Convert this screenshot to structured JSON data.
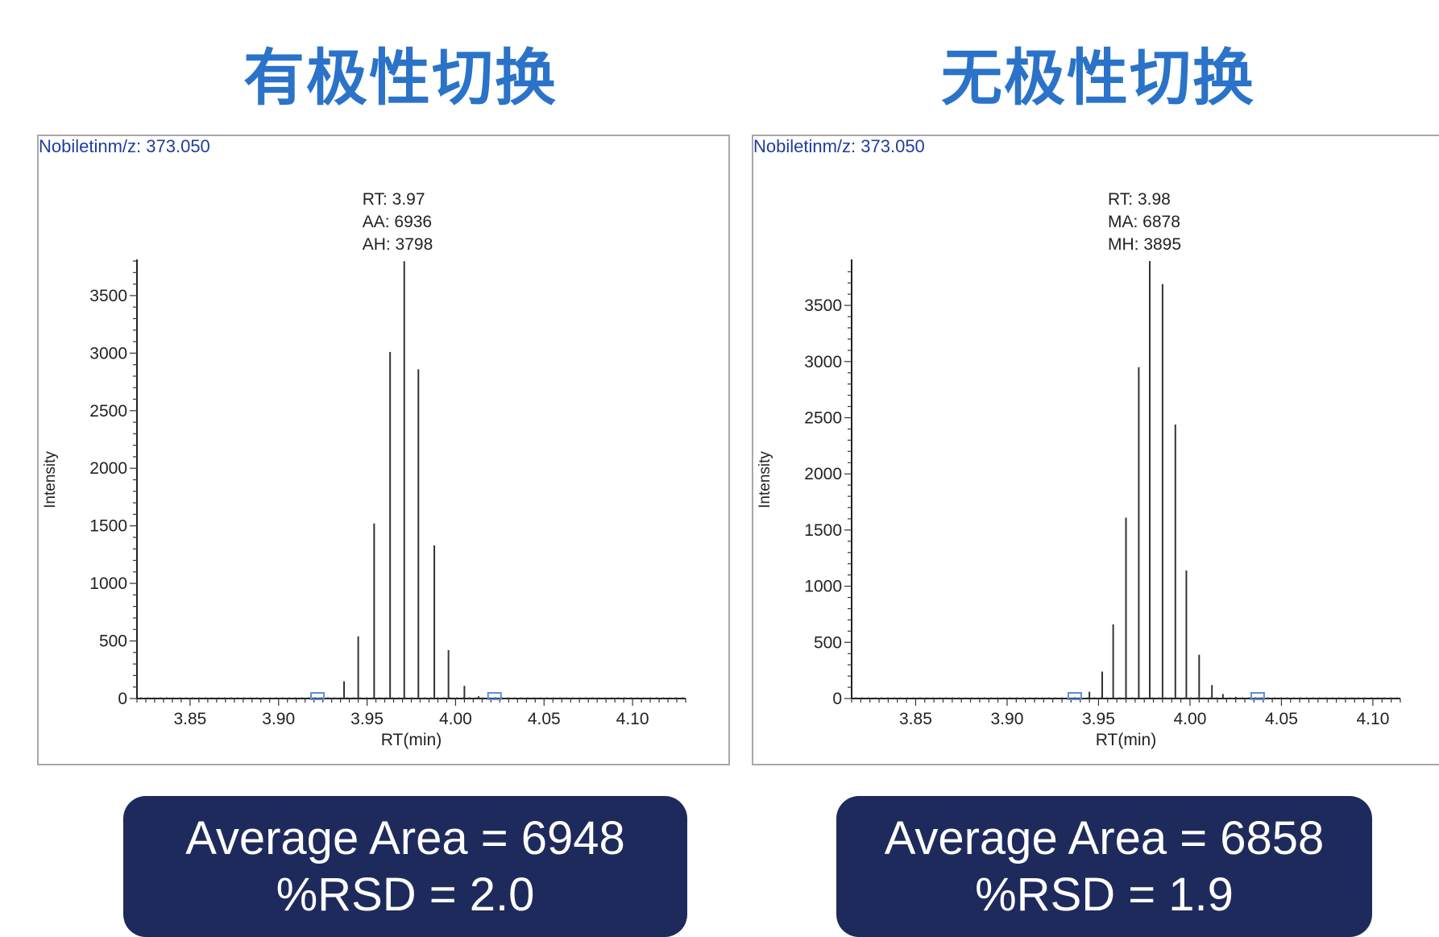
{
  "panels": [
    {
      "title": "有极性切换",
      "summary": {
        "line1": "Average Area = 6948",
        "line2": "%RSD = 2.0"
      }
    },
    {
      "title": "无极性切换",
      "summary": {
        "line1": "Average Area = 6858",
        "line2": "%RSD = 1.9"
      }
    }
  ],
  "chart_data": [
    {
      "type": "bar",
      "title": "Nobiletinm/z: 373.050",
      "xlabel": "RT(min)",
      "ylabel": "Intensity",
      "xlim": [
        3.82,
        4.13
      ],
      "ylim": [
        0,
        3800
      ],
      "xticks": [
        "3.85",
        "3.90",
        "3.95",
        "4.00",
        "4.05",
        "4.10"
      ],
      "yticks": [
        "0",
        "500",
        "1000",
        "1500",
        "2000",
        "2500",
        "3000",
        "3500"
      ],
      "annotation": [
        "RT: 3.97",
        "AA: 6936",
        "AH: 3798"
      ],
      "peak_bounds_x": [
        3.922,
        4.022
      ],
      "x": [
        3.937,
        3.945,
        3.954,
        3.963,
        3.971,
        3.979,
        3.988,
        3.996,
        4.005,
        4.013
      ],
      "values": [
        150,
        540,
        1520,
        3010,
        3798,
        2860,
        1330,
        420,
        110,
        20
      ],
      "grid": false
    },
    {
      "type": "bar",
      "title": "Nobiletinm/z: 373.050",
      "xlabel": "RT(min)",
      "ylabel": "Intensity",
      "xlim": [
        3.815,
        4.115
      ],
      "ylim": [
        0,
        3895
      ],
      "xticks": [
        "3.85",
        "3.90",
        "3.95",
        "4.00",
        "4.05",
        "4.10"
      ],
      "yticks": [
        "0",
        "500",
        "1000",
        "1500",
        "2000",
        "2500",
        "3000",
        "3500"
      ],
      "annotation": [
        "RT: 3.98",
        "MA: 6878",
        "MH: 3895"
      ],
      "peak_bounds_x": [
        3.937,
        4.037
      ],
      "x": [
        3.945,
        3.952,
        3.958,
        3.965,
        3.972,
        3.978,
        3.985,
        3.992,
        3.998,
        4.005,
        4.012,
        4.018,
        4.025
      ],
      "values": [
        60,
        240,
        660,
        1610,
        2950,
        3895,
        3690,
        2440,
        1140,
        390,
        120,
        40,
        15
      ],
      "grid": false
    }
  ]
}
